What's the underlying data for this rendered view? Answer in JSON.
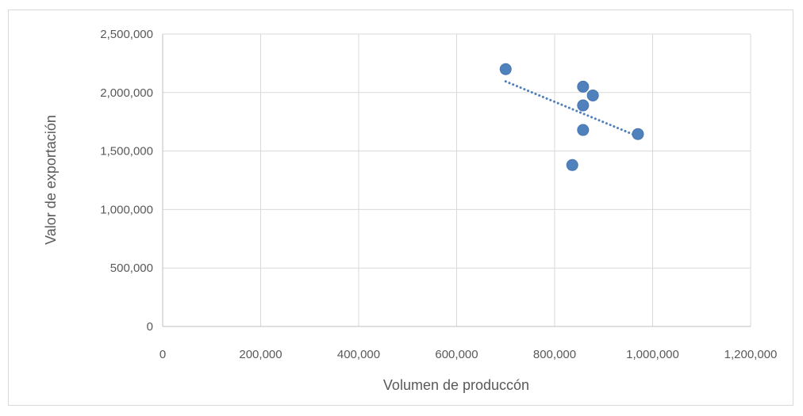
{
  "chart_data": {
    "type": "scatter",
    "title": "",
    "xlabel": "Volumen de produccón",
    "ylabel": "Valor de exportación",
    "xlim": [
      0,
      1200000
    ],
    "ylim": [
      0,
      2500000
    ],
    "x_ticks": [
      0,
      200000,
      400000,
      600000,
      800000,
      1000000,
      1200000
    ],
    "x_tick_labels": [
      "0",
      "200,000",
      "400,000",
      "600,000",
      "800,000",
      "1,000,000",
      "1,200,000"
    ],
    "y_ticks": [
      0,
      500000,
      1000000,
      1500000,
      2000000,
      2500000
    ],
    "y_tick_labels": [
      "0",
      "500,000",
      "1,000,000",
      "1,500,000",
      "2,000,000",
      "2,500,000"
    ],
    "grid": true,
    "legend": "none",
    "series": [
      {
        "points": [
          {
            "x": 700000,
            "y": 2200000
          },
          {
            "x": 858000,
            "y": 2050000
          },
          {
            "x": 878000,
            "y": 1975000
          },
          {
            "x": 858000,
            "y": 1890000
          },
          {
            "x": 858000,
            "y": 1680000
          },
          {
            "x": 970000,
            "y": 1645000
          },
          {
            "x": 836000,
            "y": 1380000
          }
        ],
        "color": "#4f81bd"
      }
    ],
    "trendline": {
      "type": "linear",
      "style": "dotted",
      "color": "#4f81bd",
      "from": {
        "x": 700000,
        "y": 2095000
      },
      "to": {
        "x": 970000,
        "y": 1625000
      }
    }
  }
}
